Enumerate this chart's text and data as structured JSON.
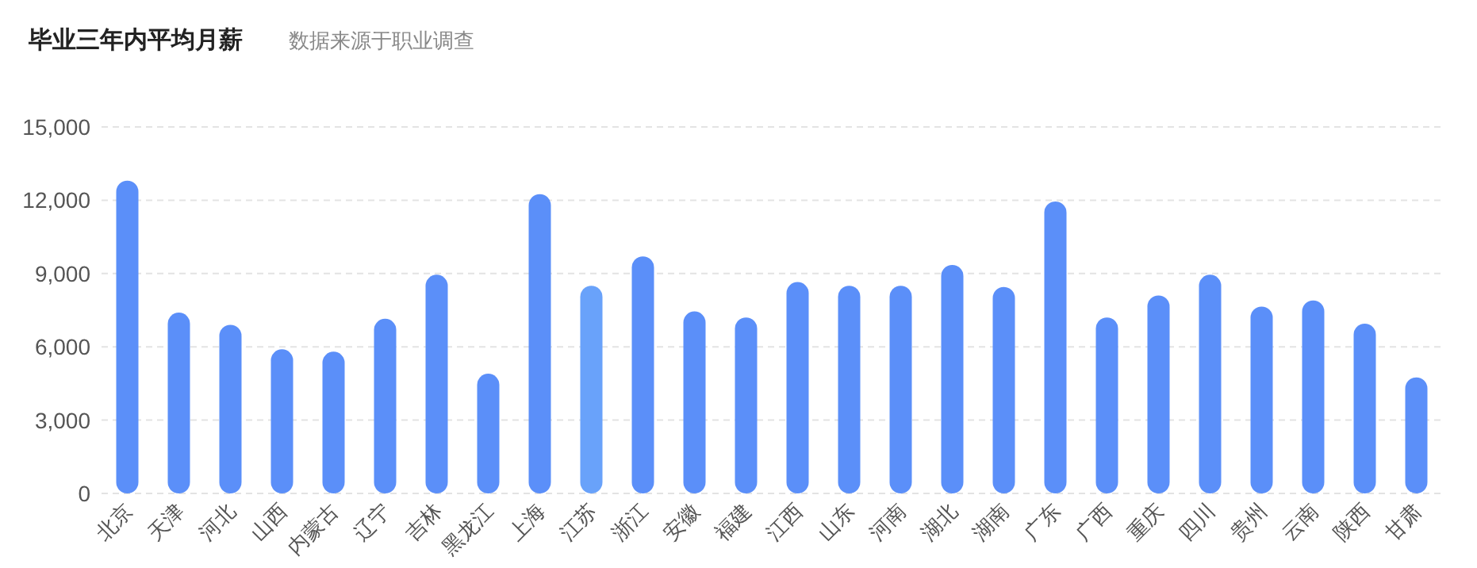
{
  "chart_data": {
    "type": "bar",
    "title": "毕业三年内平均月薪",
    "subtitle": "数据来源于职业调查",
    "categories": [
      "北京",
      "天津",
      "河北",
      "山西",
      "内蒙古",
      "辽宁",
      "吉林",
      "黑龙江",
      "上海",
      "江苏",
      "浙江",
      "安徽",
      "福建",
      "江西",
      "山东",
      "河南",
      "湖北",
      "湖南",
      "广东",
      "广西",
      "重庆",
      "四川",
      "贵州",
      "云南",
      "陕西",
      "甘肃"
    ],
    "values": [
      12800,
      7400,
      6900,
      5900,
      5800,
      7150,
      8950,
      4900,
      12250,
      8500,
      9700,
      7450,
      7200,
      8650,
      8500,
      8500,
      9350,
      8450,
      11950,
      7200,
      8100,
      8950,
      7650,
      7900,
      6950,
      4750
    ],
    "colors": [
      "#5b8ff9",
      "#5b8ff9",
      "#5b8ff9",
      "#5b8ff9",
      "#5b8ff9",
      "#5b8ff9",
      "#5b8ff9",
      "#5b8ff9",
      "#5b8ff9",
      "#69a2fa",
      "#5b8ff9",
      "#5b8ff9",
      "#5b8ff9",
      "#5b8ff9",
      "#5b8ff9",
      "#5b8ff9",
      "#5b8ff9",
      "#5b8ff9",
      "#5b8ff9",
      "#5b8ff9",
      "#5b8ff9",
      "#5b8ff9",
      "#5b8ff9",
      "#5b8ff9",
      "#5b8ff9",
      "#5b8ff9"
    ],
    "ylim": [
      0,
      15000
    ],
    "yticks": [
      {
        "value": 0,
        "label": "0"
      },
      {
        "value": 3000,
        "label": "3,000"
      },
      {
        "value": 6000,
        "label": "6,000"
      },
      {
        "value": 9000,
        "label": "9,000"
      },
      {
        "value": 12000,
        "label": "12,000"
      },
      {
        "value": 15000,
        "label": "15,000"
      }
    ],
    "grid": "y"
  }
}
